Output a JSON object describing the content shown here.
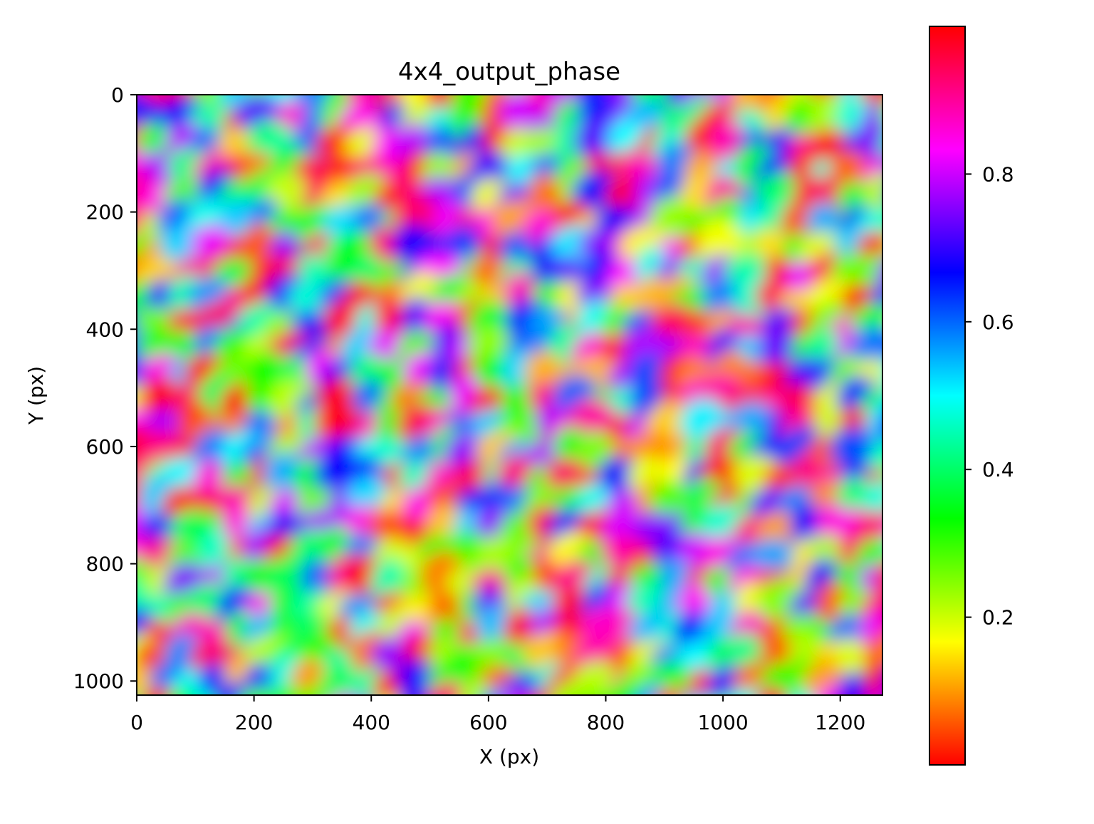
{
  "chart_data": {
    "type": "heatmap",
    "title": "4x4_output_phase",
    "xlabel": "X (px)",
    "ylabel": "Y (px)",
    "xlim": [
      0,
      1272
    ],
    "ylim": [
      1024,
      0
    ],
    "x_ticks": [
      0,
      200,
      400,
      600,
      800,
      1000,
      1200
    ],
    "y_ticks": [
      0,
      200,
      400,
      600,
      800,
      1000
    ],
    "colormap": "hsv",
    "colorbar": {
      "range": [
        0.0,
        1.0
      ],
      "ticks": [
        0.2,
        0.4,
        0.6,
        0.8
      ],
      "tick_labels": [
        "0.2",
        "0.4",
        "0.6",
        "0.8"
      ]
    },
    "grid": false,
    "value_range": [
      0.0,
      1.0
    ]
  }
}
